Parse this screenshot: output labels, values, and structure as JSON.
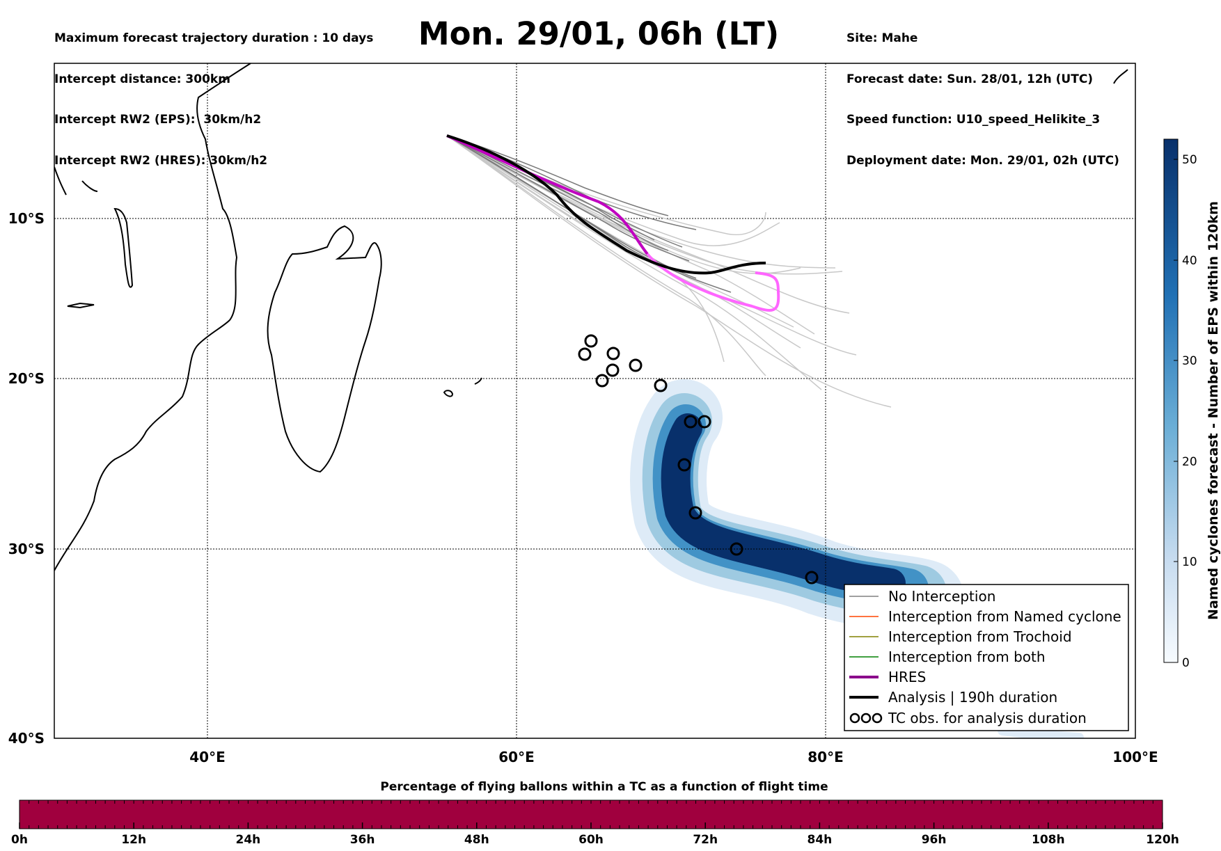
{
  "header": {
    "left": [
      "Maximum forecast trajectory duration : 10 days",
      "Intercept distance: 300km",
      "Intercept RW2 (EPS):  30km/h2",
      "Intercept RW2 (HRES): 30km/h2"
    ],
    "title": "Mon. 29/01, 06h (LT)",
    "right": [
      "Site: Mahe",
      "Forecast date: Sun. 28/01, 12h (UTC)",
      "Speed function: U10_speed_Helikite_3",
      "Deployment date: Mon. 29/01, 02h (UTC)"
    ]
  },
  "map": {
    "lon_labels": [
      "40°E",
      "60°E",
      "80°E",
      "100°E"
    ],
    "lat_labels": [
      "10°S",
      "20°S",
      "30°S",
      "40°S"
    ]
  },
  "colorbar_right": {
    "label": "Named cyclones forecast - Number of EPS within 120km",
    "ticks": [
      "0",
      "10",
      "20",
      "30",
      "40",
      "50"
    ]
  },
  "legend": {
    "items": [
      {
        "label": "No Interception",
        "color": "#808080"
      },
      {
        "label": "Interception from Named cyclone",
        "color": "#ff4500"
      },
      {
        "label": "Interception from Trochoid",
        "color": "#808000"
      },
      {
        "label": "Interception from both",
        "color": "#008000"
      },
      {
        "label": "HRES",
        "color": "#8b008b"
      },
      {
        "label": "Analysis | 190h duration",
        "color": "#000000"
      },
      {
        "label": "TC obs. for analysis duration",
        "color": "#000000"
      }
    ]
  },
  "bottom_bar": {
    "title": "Percentage of flying ballons within a TC as a function of flight time",
    "ticks": [
      "0h",
      "12h",
      "24h",
      "36h",
      "48h",
      "60h",
      "72h",
      "84h",
      "96h",
      "108h",
      "120h"
    ],
    "color": "#a0003e"
  },
  "colors": {
    "analysis": "#000000",
    "hres_main": "#c000c0",
    "hres_light": "#ff66ff",
    "density_dark": "#08306b"
  }
}
